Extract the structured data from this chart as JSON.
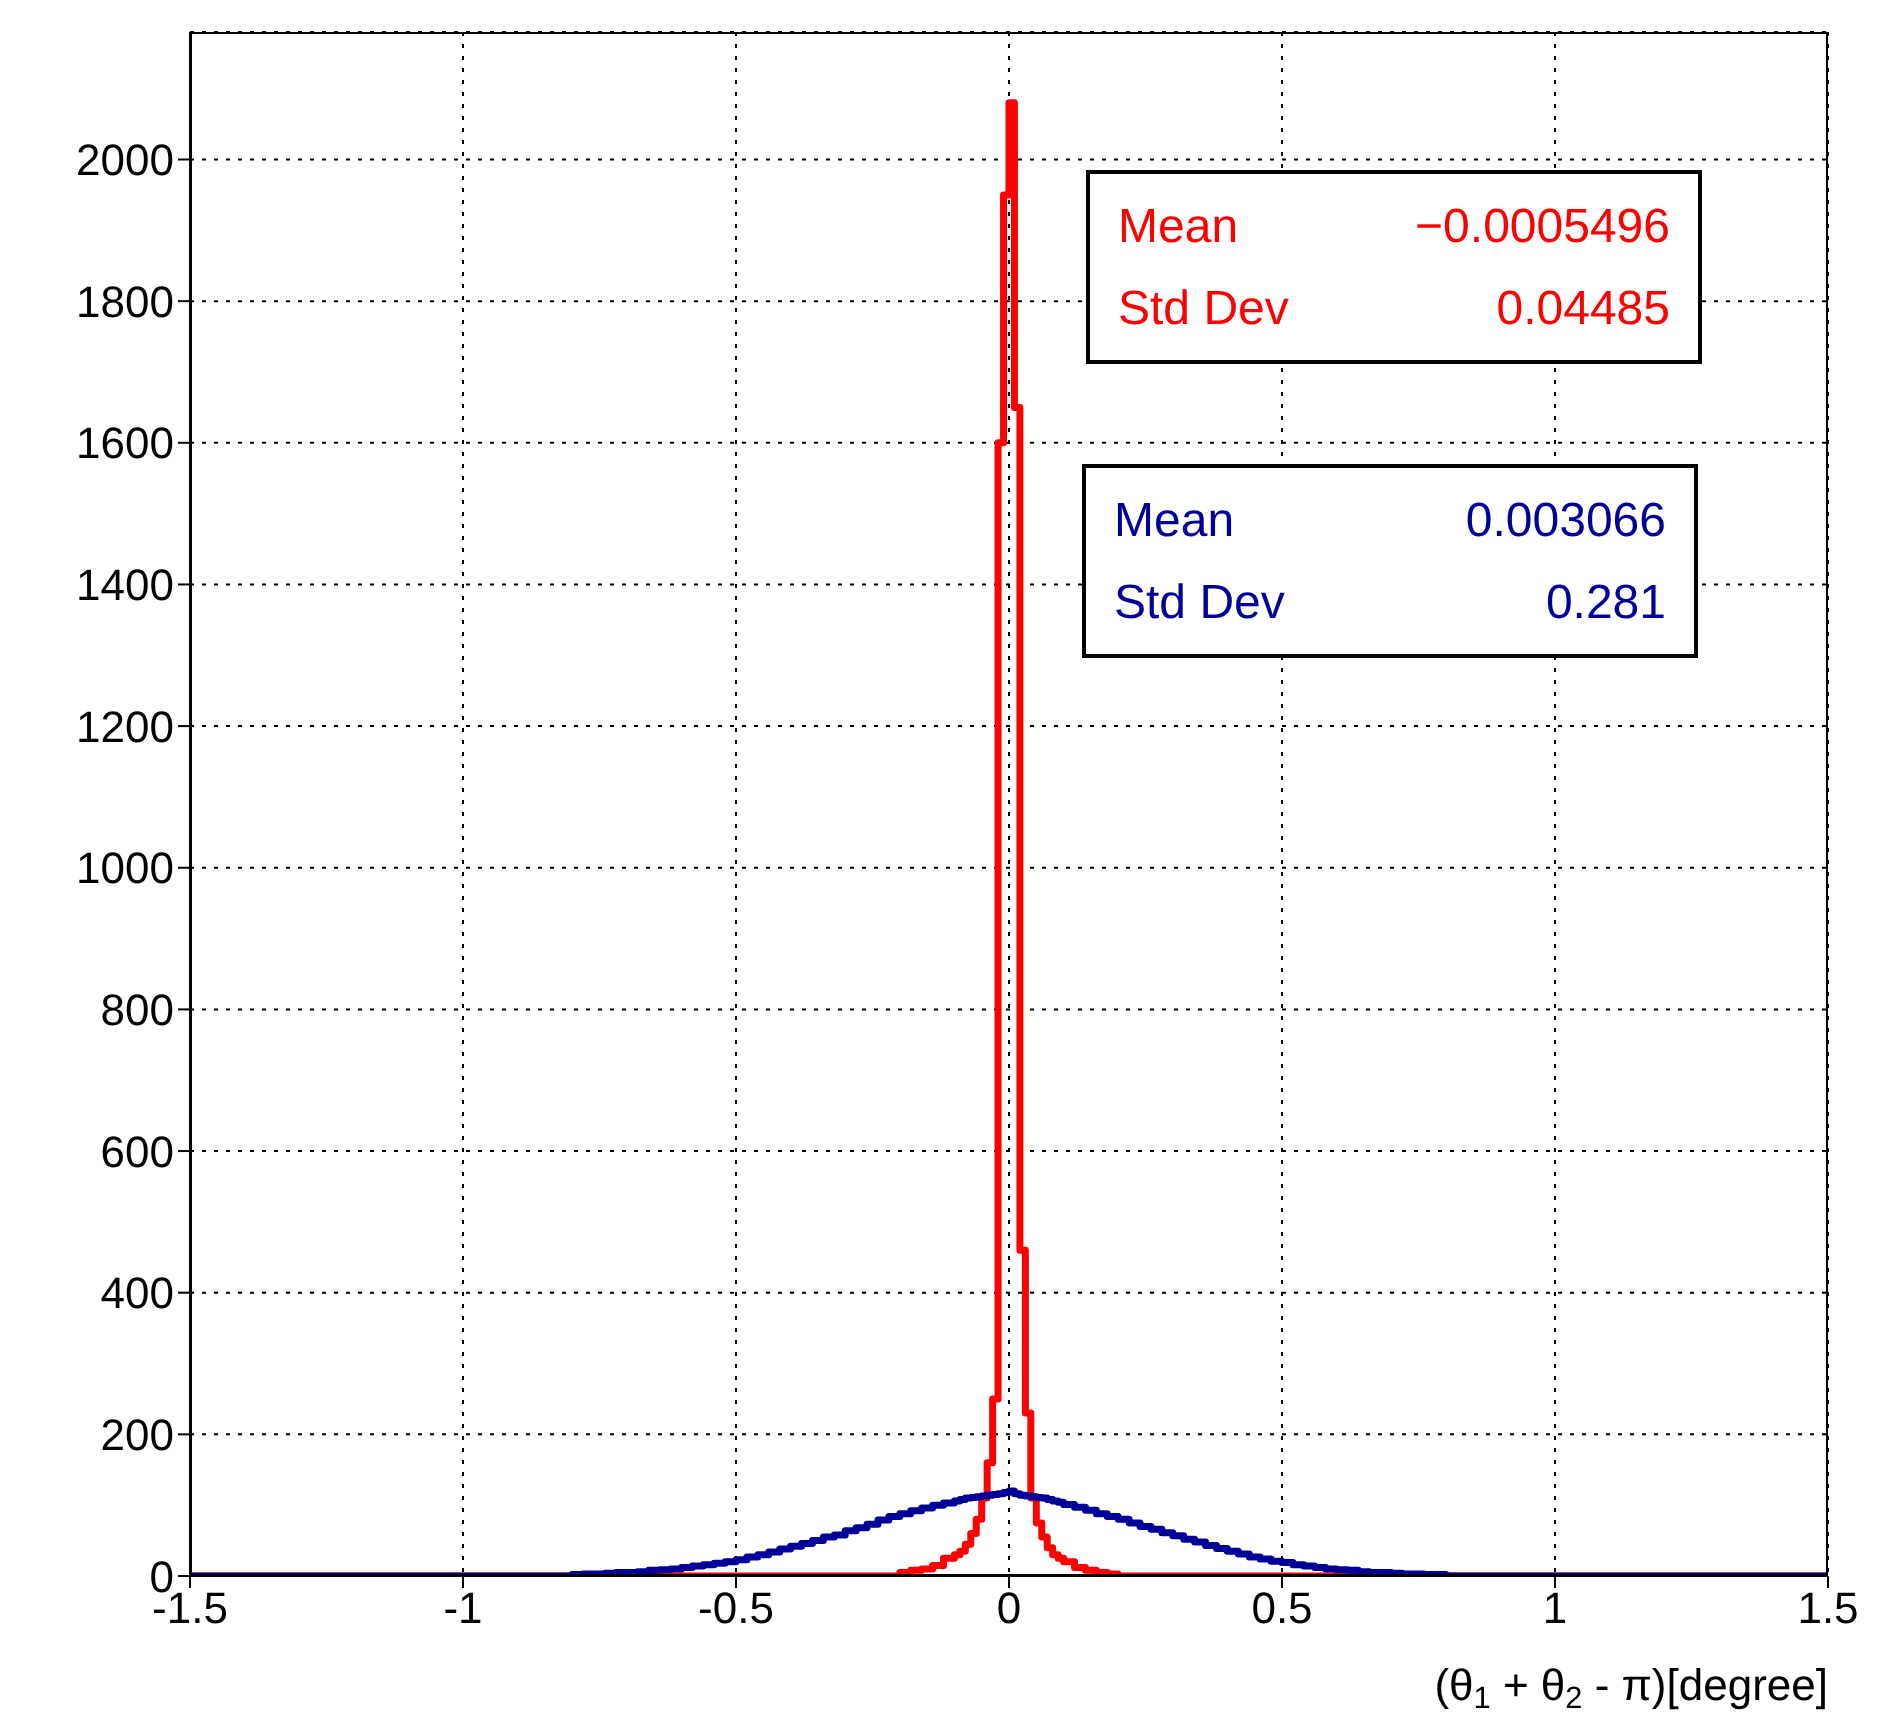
{
  "chart_data": {
    "type": "histogram",
    "xlabel": "(θ$_{1}$ + θ$_{2}$ - π)[degree]",
    "bins": [
      -1.5,
      -0.8,
      -0.78,
      -0.76,
      -0.74,
      -0.72,
      -0.7,
      -0.68,
      -0.66,
      -0.64,
      -0.62,
      -0.6,
      -0.58,
      -0.56,
      -0.54,
      -0.52,
      -0.5,
      -0.48,
      -0.46,
      -0.44,
      -0.42,
      -0.4,
      -0.38,
      -0.36,
      -0.34,
      -0.32,
      -0.3,
      -0.28,
      -0.26,
      -0.24,
      -0.22,
      -0.2,
      -0.18,
      -0.16,
      -0.14,
      -0.12,
      -0.1,
      -0.09,
      -0.08,
      -0.07,
      -0.06,
      -0.05,
      -0.04,
      -0.03,
      -0.02,
      -0.01,
      0,
      0.01,
      0.02,
      0.03,
      0.04,
      0.05,
      0.06,
      0.07,
      0.08,
      0.09,
      0.1,
      0.12,
      0.14,
      0.16,
      0.18,
      0.2,
      0.22,
      0.24,
      0.26,
      0.28,
      0.3,
      0.32,
      0.34,
      0.36,
      0.38,
      0.4,
      0.42,
      0.44,
      0.46,
      0.48,
      0.5,
      0.52,
      0.54,
      0.56,
      0.58,
      0.6,
      0.62,
      0.64,
      0.66,
      0.68,
      0.7,
      0.72,
      0.74,
      0.76,
      0.78,
      0.8,
      1.5
    ],
    "series": [
      {
        "color": "#ff0000",
        "values": [
          0,
          0,
          0,
          0,
          0,
          0,
          0,
          0,
          0,
          0,
          0,
          0,
          0,
          0,
          0,
          0,
          0,
          0,
          0,
          0,
          0,
          0,
          0,
          0,
          0,
          0,
          0,
          0,
          0,
          0,
          0,
          5,
          8,
          10,
          15,
          25,
          30,
          35,
          45,
          60,
          80,
          110,
          160,
          250,
          1600,
          1950,
          2080,
          1650,
          460,
          230,
          110,
          75,
          55,
          40,
          30,
          25,
          20,
          12,
          8,
          5,
          3,
          0,
          0,
          0,
          0,
          0,
          0,
          0,
          0,
          0,
          0,
          0,
          0,
          0,
          0,
          0,
          0,
          0,
          0,
          0,
          0,
          0,
          0,
          0,
          0,
          0,
          0,
          0,
          0,
          0,
          0,
          0
        ]
      },
      {
        "color": "#000099",
        "values": [
          0,
          2,
          3,
          3,
          4,
          5,
          5,
          6,
          8,
          9,
          10,
          12,
          14,
          16,
          18,
          20,
          23,
          27,
          30,
          34,
          38,
          42,
          46,
          50,
          55,
          58,
          64,
          68,
          73,
          79,
          84,
          88,
          92,
          96,
          100,
          103,
          106,
          108,
          110,
          111,
          112,
          113,
          114,
          115,
          116,
          118,
          120,
          116,
          114,
          113,
          112,
          111,
          110,
          108,
          106,
          104,
          101,
          97,
          93,
          88,
          84,
          80,
          75,
          70,
          66,
          61,
          57,
          52,
          48,
          43,
          39,
          35,
          31,
          27,
          24,
          21,
          19,
          16,
          14,
          12,
          10,
          9,
          8,
          6,
          5,
          5,
          4,
          3,
          3,
          2,
          2,
          0
        ]
      }
    ],
    "xlim": [
      -1.5,
      1.5
    ],
    "xticks": [
      -1.5,
      -1,
      -0.5,
      0,
      0.5,
      1,
      1.5
    ],
    "ylim": [
      0,
      2180
    ],
    "yticks": [
      0,
      200,
      400,
      600,
      800,
      1000,
      1200,
      1400,
      1600,
      1800,
      2000
    ],
    "grid": true,
    "annotations": [
      "Mean",
      "−0.0005496",
      "Std Dev",
      "0.04485",
      "Mean",
      "0.003066",
      "Std Dev",
      "0.281"
    ]
  }
}
